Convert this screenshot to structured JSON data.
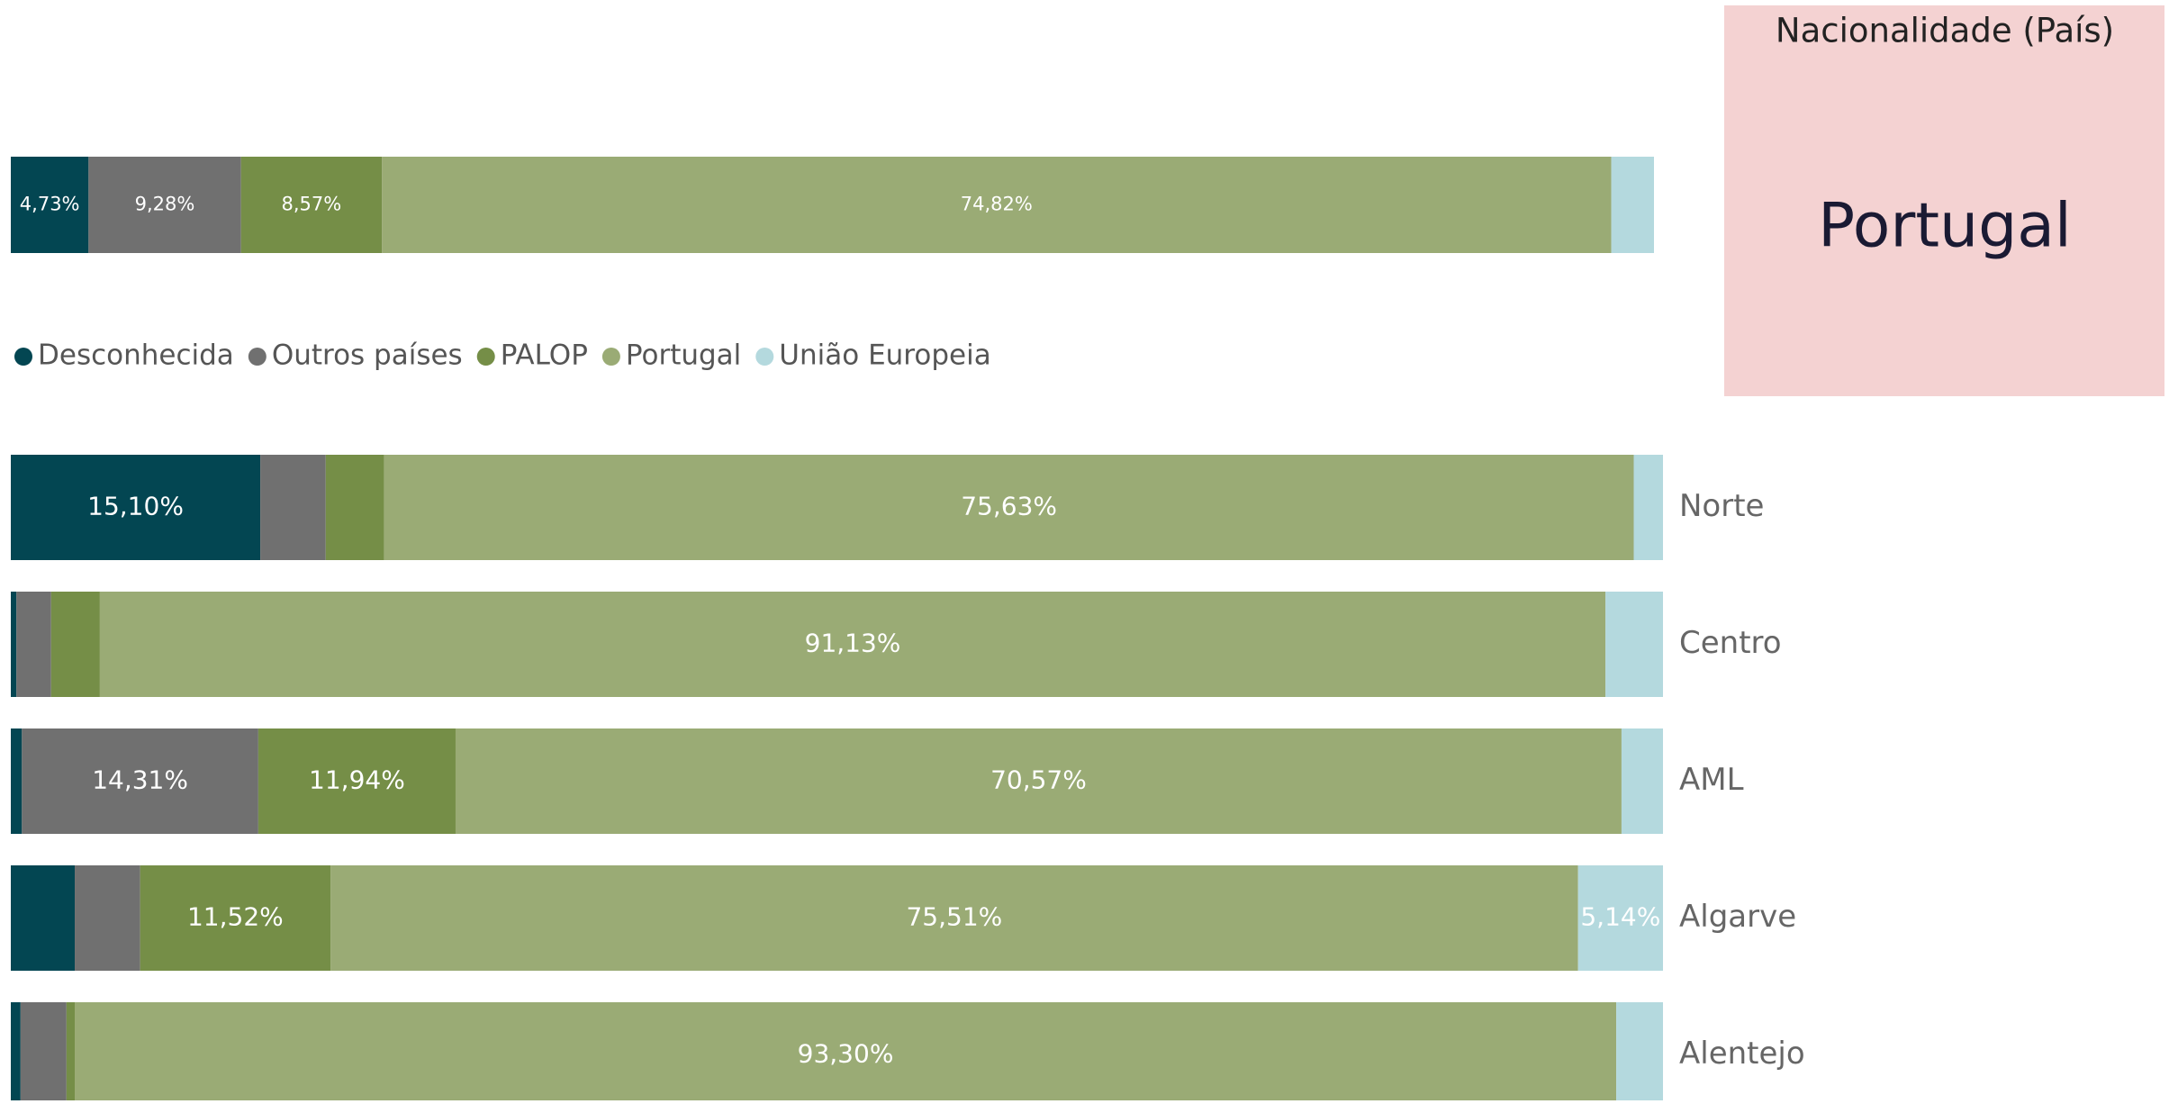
{
  "chart_data": [
    {
      "type": "stacked-bar-100",
      "categories": [
        null
      ],
      "series": [
        {
          "name": "Desconhecida",
          "color": "#034652",
          "values": [
            4.73
          ],
          "value_labels": [
            "4,73%"
          ]
        },
        {
          "name": "Outros países",
          "color": "#707070",
          "values": [
            9.28
          ],
          "value_labels": [
            "9,28%"
          ]
        },
        {
          "name": "PALOP",
          "color": "#758e47",
          "values": [
            8.57
          ],
          "value_labels": [
            "8,57%"
          ]
        },
        {
          "name": "Portugal",
          "color": "#9aab75",
          "values": [
            74.82
          ],
          "value_labels": [
            "74,82%"
          ]
        },
        {
          "name": "União Europeia",
          "color": "#b4d9de",
          "values": [
            2.6
          ],
          "value_labels": [
            null
          ]
        }
      ]
    },
    {
      "type": "stacked-bar-100",
      "categories": [
        "Norte",
        "Centro",
        "AML",
        "Algarve",
        "Alentejo"
      ],
      "series": [
        {
          "name": "Desconhecida",
          "color": "#034652",
          "values": [
            15.1,
            0.34,
            0.67,
            3.87,
            0.59
          ],
          "value_labels": [
            "15,10%",
            null,
            null,
            null,
            null
          ]
        },
        {
          "name": "Outros países",
          "color": "#707070",
          "values": [
            3.96,
            2.1,
            14.31,
            3.96,
            2.78
          ],
          "value_labels": [
            null,
            null,
            "14,31%",
            null,
            null
          ]
        },
        {
          "name": "PALOP",
          "color": "#758e47",
          "values": [
            3.54,
            2.95,
            11.94,
            11.52,
            0.5
          ],
          "value_labels": [
            null,
            null,
            "11,94%",
            "11,52%",
            null
          ]
        },
        {
          "name": "Portugal",
          "color": "#9aab75",
          "values": [
            75.63,
            91.13,
            70.57,
            75.51,
            93.3
          ],
          "value_labels": [
            "75,63%",
            "91,13%",
            "70,57%",
            "75,51%",
            "93,30%"
          ]
        },
        {
          "name": "União Europeia",
          "color": "#b4d9de",
          "values": [
            1.77,
            3.48,
            2.51,
            5.14,
            2.83
          ],
          "value_labels": [
            null,
            null,
            null,
            "5,14%",
            null
          ]
        }
      ]
    }
  ],
  "card": {
    "title": "Nacionalidade (País)",
    "value": "Portugal"
  }
}
